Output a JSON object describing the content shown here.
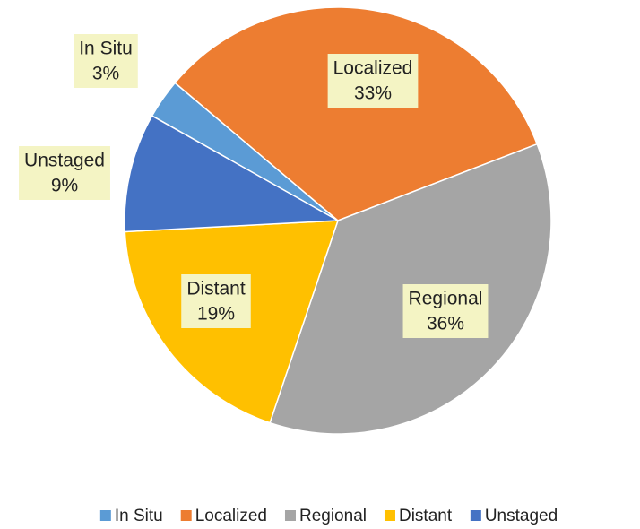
{
  "chart_data": {
    "type": "pie",
    "categories": [
      "In Situ",
      "Localized",
      "Regional",
      "Distant",
      "Unstaged"
    ],
    "values": [
      3,
      33,
      36,
      19,
      9
    ],
    "value_labels": [
      "3%",
      "33%",
      "36%",
      "19%",
      "9%"
    ],
    "colors": [
      "#5b9bd5",
      "#ed7d31",
      "#a5a5a5",
      "#ffc000",
      "#4472c4"
    ],
    "legend": "bottom"
  }
}
